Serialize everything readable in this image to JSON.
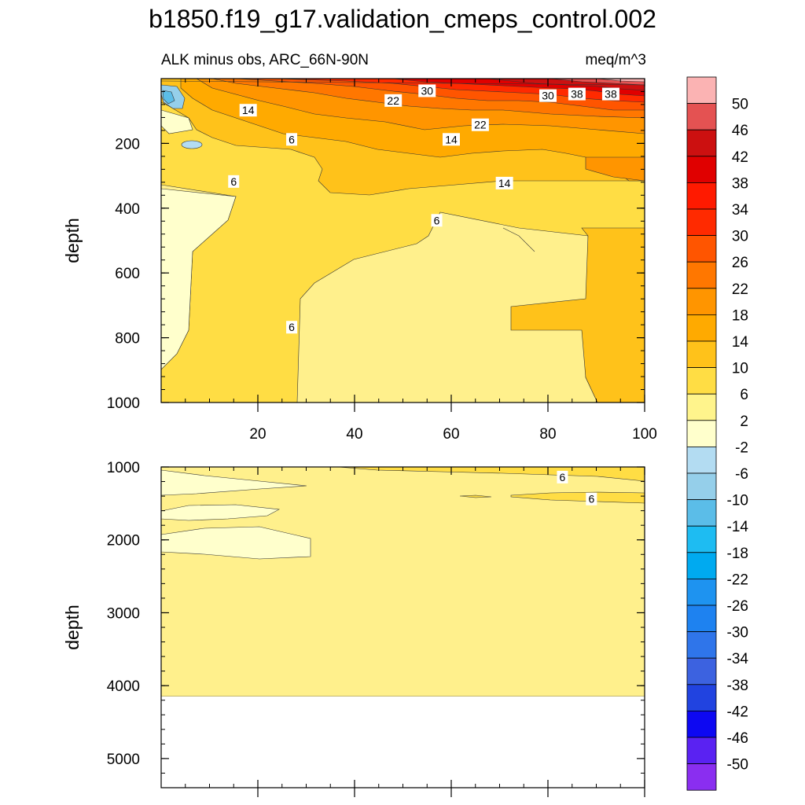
{
  "title": "b1850.f19_g17.validation_cmeps_control.002",
  "subtitle_left": "ALK minus obs, ARC_66N-90N",
  "subtitle_right": "meq/m^3",
  "chart_data": [
    {
      "type": "heatmap",
      "panel": "upper",
      "title": "ALK minus obs, ARC_66N-90N",
      "units": "meq/m^3",
      "ylabel": "depth",
      "xlabel": "",
      "x_range": [
        0,
        100
      ],
      "y_range": [
        1000,
        0
      ],
      "y_inverted": true,
      "xticks": [
        20,
        40,
        60,
        80,
        100
      ],
      "yticks": [
        200,
        400,
        600,
        800,
        1000
      ],
      "contour_labels": [
        {
          "x": 55,
          "depth": 40,
          "text": "30"
        },
        {
          "x": 48,
          "depth": 70,
          "text": "22"
        },
        {
          "x": 80,
          "depth": 55,
          "text": "30"
        },
        {
          "x": 86,
          "depth": 50,
          "text": "38"
        },
        {
          "x": 93,
          "depth": 50,
          "text": "38"
        },
        {
          "x": 18,
          "depth": 100,
          "text": "14"
        },
        {
          "x": 66,
          "depth": 145,
          "text": "22"
        },
        {
          "x": 60,
          "depth": 190,
          "text": "14"
        },
        {
          "x": 27,
          "depth": 190,
          "text": "6"
        },
        {
          "x": 15,
          "depth": 320,
          "text": "6"
        },
        {
          "x": 71,
          "depth": 325,
          "text": "14"
        },
        {
          "x": 57,
          "depth": 440,
          "text": "6"
        },
        {
          "x": 27,
          "depth": 770,
          "text": "6"
        }
      ]
    },
    {
      "type": "heatmap",
      "panel": "lower",
      "ylabel": "depth",
      "xlabel": "",
      "x_range": [
        0,
        100
      ],
      "y_range": [
        5400,
        1000
      ],
      "y_inverted": true,
      "yticks": [
        1000,
        2000,
        3000,
        4000,
        5000
      ],
      "ocean_bottom_depth": 4120,
      "contour_labels": [
        {
          "x": 83,
          "depth": 1150,
          "text": "6"
        },
        {
          "x": 89,
          "depth": 1450,
          "text": "6"
        }
      ]
    }
  ],
  "colorbar": {
    "labels": [
      "50",
      "46",
      "42",
      "38",
      "34",
      "30",
      "26",
      "22",
      "18",
      "14",
      "10",
      "6",
      "2",
      "-2",
      "-6",
      "-10",
      "-14",
      "-18",
      "-22",
      "-26",
      "-30",
      "-34",
      "-38",
      "-42",
      "-46",
      "-50"
    ],
    "colors": [
      "#fbb3b3",
      "#e45252",
      "#cc1010",
      "#e00000",
      "#ff1a00",
      "#ff2a00",
      "#ff5500",
      "#ff7700",
      "#ff9500",
      "#ffaa00",
      "#ffc21a",
      "#ffdd44",
      "#fff48c",
      "#ffffcc",
      "#b3dcf2",
      "#95cfea",
      "#5bbde8",
      "#1ebcf2",
      "#00aaf0",
      "#1e93f0",
      "#1e82f0",
      "#2f75ea",
      "#3c62e0",
      "#2143e0",
      "#0d08f2",
      "#5a22f2",
      "#8a2ef0"
    ]
  }
}
